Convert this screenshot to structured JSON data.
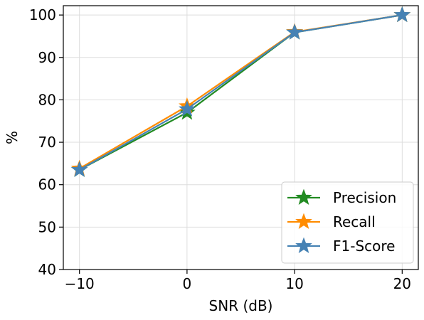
{
  "chart_data": {
    "type": "line",
    "title": "",
    "xlabel": "SNR (dB)",
    "ylabel": "%",
    "x": [
      -10,
      0,
      10,
      20
    ],
    "xlim": [
      -11.5,
      21.5
    ],
    "ylim": [
      40,
      102.2
    ],
    "xticks": [
      -10,
      0,
      10,
      20
    ],
    "xtick_labels": [
      "−10",
      "0",
      "10",
      "20"
    ],
    "yticks": [
      40,
      50,
      60,
      70,
      80,
      90,
      100
    ],
    "ytick_labels": [
      "40",
      "50",
      "60",
      "70",
      "80",
      "90",
      "100"
    ],
    "grid": true,
    "legend_position": "bottom-right",
    "marker": "star",
    "series": [
      {
        "name": "Precision",
        "color": "#228b22",
        "values": [
          63.5,
          77.0,
          95.9,
          100.0
        ]
      },
      {
        "name": "Recall",
        "color": "#ff8c00",
        "values": [
          63.8,
          78.5,
          96.0,
          100.0
        ]
      },
      {
        "name": "F1-Score",
        "color": "#4682b4",
        "values": [
          63.5,
          77.8,
          95.9,
          100.0
        ]
      }
    ]
  }
}
